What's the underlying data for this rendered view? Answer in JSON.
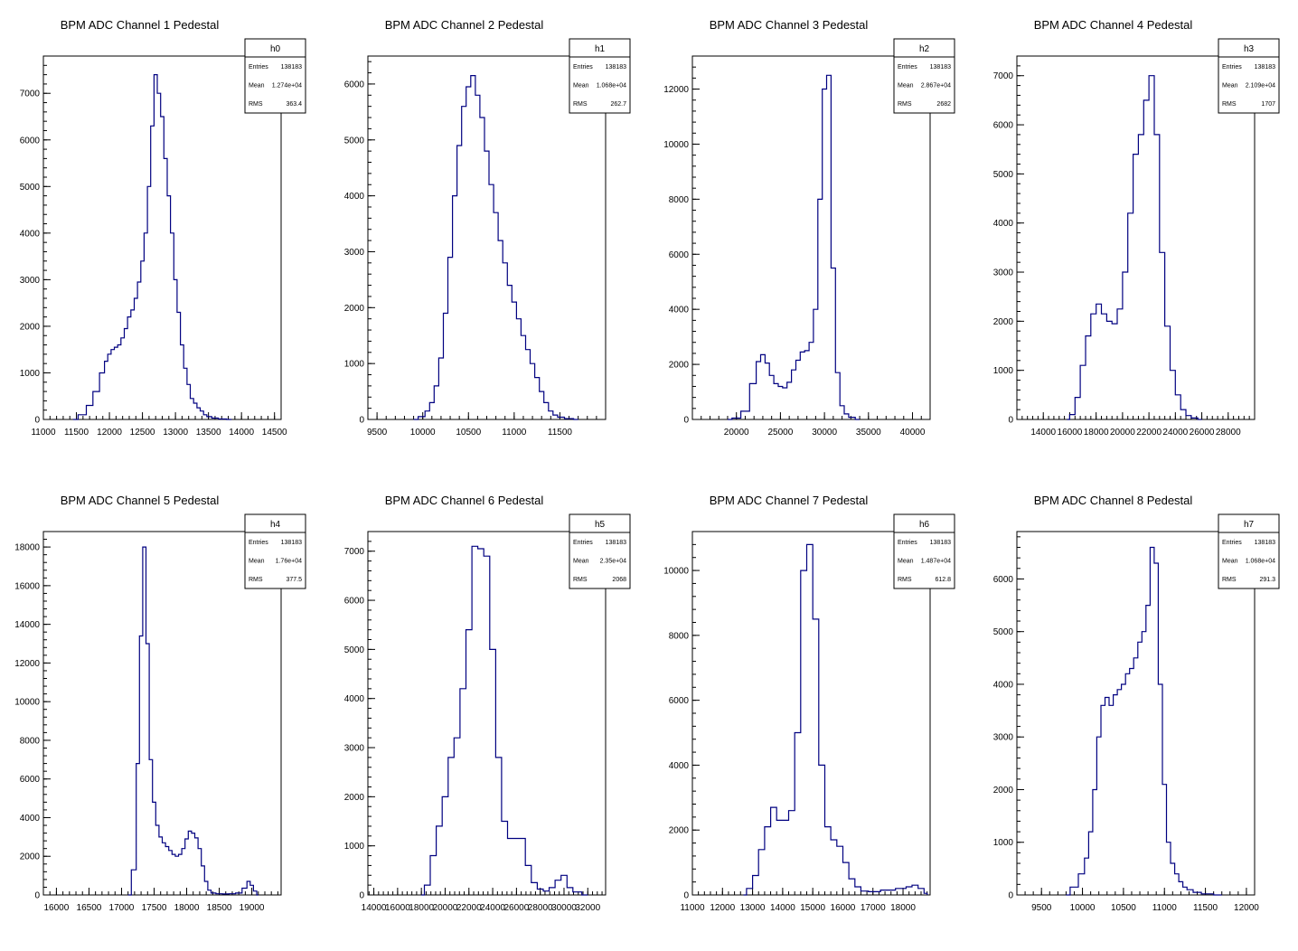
{
  "chart_data": [
    {
      "type": "histogram",
      "title": "BPM ADC Channel 1 Pedestal",
      "stats": {
        "name": "h0",
        "rows": [
          {
            "label": "Entries",
            "value": "138183"
          },
          {
            "label": "Mean",
            "value": "1.274e+04"
          },
          {
            "label": "RMS",
            "value": "363.4"
          }
        ]
      },
      "xlim": [
        11000,
        14600
      ],
      "ylim": [
        0,
        7800
      ],
      "xticks": [
        11000,
        11500,
        12000,
        12500,
        13000,
        13500,
        14000,
        14500
      ],
      "yticks": [
        0,
        1000,
        2000,
        3000,
        4000,
        5000,
        6000,
        7000
      ],
      "x": [
        11450,
        11600,
        11700,
        11800,
        11900,
        11950,
        12000,
        12050,
        12100,
        12150,
        12200,
        12250,
        12300,
        12350,
        12400,
        12450,
        12500,
        12550,
        12600,
        12650,
        12700,
        12750,
        12800,
        12850,
        12900,
        12950,
        13000,
        13050,
        13100,
        13150,
        13200,
        13250,
        13300,
        13350,
        13400,
        13450,
        13500,
        13600,
        13700,
        13850
      ],
      "values": [
        0,
        100,
        300,
        600,
        1000,
        1250,
        1400,
        1500,
        1550,
        1600,
        1750,
        1950,
        2200,
        2350,
        2600,
        2950,
        3400,
        4000,
        5000,
        6300,
        7400,
        7000,
        6500,
        5600,
        4800,
        4000,
        3000,
        2300,
        1600,
        1100,
        750,
        450,
        350,
        250,
        180,
        100,
        60,
        30,
        10,
        0
      ]
    },
    {
      "type": "histogram",
      "title": "BPM ADC Channel 2 Pedestal",
      "stats": {
        "name": "h1",
        "rows": [
          {
            "label": "Entries",
            "value": "138183"
          },
          {
            "label": "Mean",
            "value": "1.068e+04"
          },
          {
            "label": "RMS",
            "value": "262.7"
          }
        ]
      },
      "xlim": [
        9400,
        12000
      ],
      "ylim": [
        0,
        6500
      ],
      "xticks": [
        9500,
        10000,
        10500,
        11000,
        11500
      ],
      "yticks": [
        0,
        1000,
        2000,
        3000,
        4000,
        5000,
        6000
      ],
      "x": [
        9900,
        10000,
        10050,
        10100,
        10150,
        10200,
        10250,
        10300,
        10350,
        10400,
        10450,
        10500,
        10550,
        10600,
        10650,
        10700,
        10750,
        10800,
        10850,
        10900,
        10950,
        11000,
        11050,
        11100,
        11150,
        11200,
        11250,
        11300,
        11350,
        11400,
        11450,
        11500,
        11600,
        11700
      ],
      "values": [
        0,
        50,
        150,
        300,
        600,
        1100,
        1900,
        2900,
        4000,
        4900,
        5600,
        5950,
        6150,
        5800,
        5400,
        4800,
        4200,
        3700,
        3200,
        2800,
        2400,
        2100,
        1800,
        1500,
        1250,
        1000,
        750,
        500,
        300,
        150,
        80,
        40,
        15,
        0
      ]
    },
    {
      "type": "histogram",
      "title": "BPM ADC Channel 3 Pedestal",
      "stats": {
        "name": "h2",
        "rows": [
          {
            "label": "Entries",
            "value": "138183"
          },
          {
            "label": "Mean",
            "value": "2.867e+04"
          },
          {
            "label": "RMS",
            "value": "2682"
          }
        ]
      },
      "xlim": [
        15000,
        42000
      ],
      "ylim": [
        0,
        13200
      ],
      "xticks": [
        20000,
        25000,
        30000,
        35000,
        40000
      ],
      "yticks": [
        0,
        2000,
        4000,
        6000,
        8000,
        10000,
        12000
      ],
      "x": [
        19000,
        20000,
        21000,
        22000,
        22500,
        23000,
        23500,
        24000,
        24500,
        25000,
        25500,
        26000,
        26500,
        27000,
        27500,
        28000,
        28500,
        29000,
        29500,
        30000,
        30500,
        31000,
        31500,
        32000,
        32500,
        33000,
        34000
      ],
      "values": [
        0,
        50,
        300,
        1300,
        2100,
        2350,
        2050,
        1600,
        1300,
        1200,
        1150,
        1350,
        1800,
        2150,
        2450,
        2500,
        2800,
        4000,
        8000,
        12000,
        12500,
        5500,
        1700,
        500,
        200,
        80,
        0
      ]
    },
    {
      "type": "histogram",
      "title": "BPM ADC Channel 4 Pedestal",
      "stats": {
        "name": "h3",
        "rows": [
          {
            "label": "Entries",
            "value": "138183"
          },
          {
            "label": "Mean",
            "value": "2.109e+04"
          },
          {
            "label": "RMS",
            "value": "1707"
          }
        ]
      },
      "xlim": [
        12000,
        30000
      ],
      "ylim": [
        0,
        7400
      ],
      "xticks": [
        14000,
        16000,
        18000,
        20000,
        22000,
        24000,
        26000,
        28000
      ],
      "yticks": [
        0,
        1000,
        2000,
        3000,
        4000,
        5000,
        6000,
        7000
      ],
      "x": [
        15800,
        16200,
        16600,
        17000,
        17400,
        17800,
        18200,
        18600,
        19000,
        19400,
        19800,
        20200,
        20600,
        21000,
        21400,
        21800,
        22200,
        22600,
        23000,
        23400,
        23800,
        24200,
        24600,
        25000,
        25400,
        26000
      ],
      "values": [
        0,
        100,
        450,
        1100,
        1700,
        2150,
        2350,
        2150,
        2000,
        1950,
        2250,
        3000,
        4200,
        5400,
        5800,
        6500,
        7000,
        5800,
        3400,
        1900,
        1000,
        500,
        200,
        80,
        30,
        0
      ]
    },
    {
      "type": "histogram",
      "title": "BPM ADC Channel 5 Pedestal",
      "stats": {
        "name": "h4",
        "rows": [
          {
            "label": "Entries",
            "value": "138183"
          },
          {
            "label": "Mean",
            "value": "1.76e+04"
          },
          {
            "label": "RMS",
            "value": "377.5"
          }
        ]
      },
      "xlim": [
        15800,
        19450
      ],
      "ylim": [
        0,
        18800
      ],
      "xticks": [
        16000,
        16500,
        17000,
        17500,
        18000,
        18500,
        19000
      ],
      "yticks": [
        0,
        2000,
        4000,
        6000,
        8000,
        10000,
        12000,
        14000,
        16000,
        18000
      ],
      "x": [
        17100,
        17200,
        17250,
        17300,
        17350,
        17400,
        17450,
        17500,
        17550,
        17600,
        17650,
        17700,
        17750,
        17800,
        17850,
        17900,
        17950,
        18000,
        18050,
        18100,
        18150,
        18200,
        18250,
        18300,
        18350,
        18400,
        18500,
        18600,
        18700,
        18800,
        18900,
        18950,
        19000,
        19050,
        19100
      ],
      "values": [
        0,
        1300,
        6800,
        13400,
        18000,
        13000,
        7000,
        4800,
        3600,
        3000,
        2700,
        2500,
        2300,
        2100,
        2000,
        2100,
        2400,
        2900,
        3300,
        3200,
        2950,
        2400,
        1500,
        700,
        250,
        100,
        60,
        50,
        60,
        100,
        350,
        700,
        500,
        200,
        0
      ]
    },
    {
      "type": "histogram",
      "title": "BPM ADC Channel 6 Pedestal",
      "stats": {
        "name": "h5",
        "rows": [
          {
            "label": "Entries",
            "value": "138183"
          },
          {
            "label": "Mean",
            "value": "2.35e+04"
          },
          {
            "label": "RMS",
            "value": "2068"
          }
        ]
      },
      "xlim": [
        13500,
        33500
      ],
      "ylim": [
        0,
        7400
      ],
      "xticks": [
        14000,
        16000,
        18000,
        20000,
        22000,
        24000,
        26000,
        28000,
        30000,
        32000
      ],
      "yticks": [
        0,
        1000,
        2000,
        3000,
        4000,
        5000,
        6000,
        7000
      ],
      "x": [
        18000,
        18500,
        19000,
        19500,
        20000,
        20500,
        21000,
        21500,
        22000,
        22500,
        23000,
        23500,
        24000,
        24500,
        25000,
        25500,
        26000,
        26500,
        27000,
        27500,
        28000,
        28500,
        29000,
        29500,
        30000,
        30500,
        31000,
        32000
      ],
      "values": [
        0,
        200,
        800,
        1400,
        2000,
        2800,
        3200,
        4200,
        5400,
        7100,
        7050,
        6900,
        5000,
        2800,
        1500,
        1150,
        1150,
        1150,
        600,
        250,
        120,
        80,
        150,
        300,
        400,
        150,
        60,
        0
      ]
    },
    {
      "type": "histogram",
      "title": "BPM ADC Channel 7 Pedestal",
      "stats": {
        "name": "h6",
        "rows": [
          {
            "label": "Entries",
            "value": "138183"
          },
          {
            "label": "Mean",
            "value": "1.487e+04"
          },
          {
            "label": "RMS",
            "value": "612.8"
          }
        ]
      },
      "xlim": [
        11000,
        18900
      ],
      "ylim": [
        0,
        11200
      ],
      "xticks": [
        11000,
        12000,
        13000,
        14000,
        15000,
        16000,
        17000,
        18000
      ],
      "yticks": [
        0,
        2000,
        4000,
        6000,
        8000,
        10000
      ],
      "x": [
        12700,
        12900,
        13100,
        13300,
        13500,
        13700,
        13900,
        14100,
        14300,
        14500,
        14700,
        14900,
        15100,
        15300,
        15500,
        15700,
        15900,
        16100,
        16300,
        16500,
        16700,
        17000,
        17500,
        18000,
        18200,
        18400,
        18600,
        18800
      ],
      "values": [
        0,
        200,
        600,
        1400,
        2100,
        2700,
        2300,
        2300,
        2600,
        5000,
        10000,
        10800,
        8500,
        4000,
        2100,
        1700,
        1500,
        1000,
        500,
        250,
        120,
        100,
        150,
        200,
        250,
        300,
        200,
        50
      ]
    },
    {
      "type": "histogram",
      "title": "BPM ADC Channel 8 Pedestal",
      "stats": {
        "name": "h7",
        "rows": [
          {
            "label": "Entries",
            "value": "138183"
          },
          {
            "label": "Mean",
            "value": "1.068e+04"
          },
          {
            "label": "RMS",
            "value": "291.3"
          }
        ]
      },
      "xlim": [
        9200,
        12100
      ],
      "ylim": [
        0,
        6900
      ],
      "xticks": [
        9500,
        10000,
        10500,
        11000,
        11500,
        12000
      ],
      "yticks": [
        0,
        1000,
        2000,
        3000,
        4000,
        5000,
        6000
      ],
      "x": [
        9800,
        9900,
        10000,
        10050,
        10100,
        10150,
        10200,
        10250,
        10300,
        10350,
        10400,
        10450,
        10500,
        10550,
        10600,
        10650,
        10700,
        10750,
        10800,
        10850,
        10900,
        10950,
        11000,
        11050,
        11100,
        11150,
        11200,
        11250,
        11300,
        11400,
        11500,
        11700
      ],
      "values": [
        0,
        150,
        400,
        700,
        1200,
        2000,
        3000,
        3600,
        3750,
        3600,
        3800,
        3900,
        4000,
        4200,
        4300,
        4500,
        4800,
        5000,
        5500,
        6600,
        6300,
        4000,
        2100,
        1000,
        600,
        400,
        250,
        150,
        100,
        50,
        20,
        0
      ]
    }
  ]
}
